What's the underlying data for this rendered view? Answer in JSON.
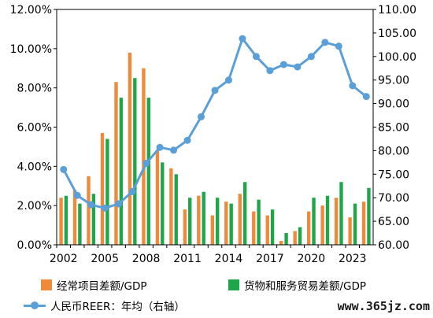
{
  "chart_data": {
    "type": "bar+line",
    "categories": [
      "2002",
      "2003",
      "2004",
      "2005",
      "2006",
      "2007",
      "2008",
      "2009",
      "2010",
      "2011",
      "2012",
      "2013",
      "2014",
      "2015",
      "2016",
      "2017",
      "2018",
      "2019",
      "2020",
      "2021",
      "2022",
      "2023",
      "2024"
    ],
    "x_tick_labels": [
      "2002",
      "2005",
      "2008",
      "2011",
      "2014",
      "2017",
      "2020",
      "2023"
    ],
    "left_axis": {
      "ylim": [
        0,
        0.12
      ],
      "ticks": [
        "0.00%",
        "2.00%",
        "4.00%",
        "6.00%",
        "8.00%",
        "10.00%",
        "12.00%"
      ]
    },
    "right_axis": {
      "ylim": [
        60,
        110
      ],
      "ticks": [
        "60.00",
        "65.00",
        "70.00",
        "75.00",
        "80.00",
        "85.00",
        "90.00",
        "95.00",
        "100.00",
        "105.00",
        "110.00"
      ]
    },
    "series": [
      {
        "name": "经常项目差额/GDP",
        "type": "bar",
        "axis": "left",
        "color": "#ee8a3a",
        "values": [
          0.024,
          0.028,
          0.035,
          0.057,
          0.083,
          0.098,
          0.09,
          0.048,
          0.039,
          0.018,
          0.025,
          0.015,
          0.022,
          0.026,
          0.017,
          0.015,
          0.002,
          0.007,
          0.017,
          0.02,
          0.024,
          0.014,
          0.022
        ]
      },
      {
        "name": "货物和服务贸易差额/GDP",
        "type": "bar",
        "axis": "left",
        "color": "#1fa64a",
        "values": [
          0.025,
          0.021,
          0.026,
          0.054,
          0.075,
          0.085,
          0.075,
          0.042,
          0.036,
          0.024,
          0.027,
          0.024,
          0.021,
          0.032,
          0.023,
          0.018,
          0.006,
          0.009,
          0.024,
          0.025,
          0.032,
          0.021,
          0.029
        ]
      },
      {
        "name": "人民币REER：年均（右轴）",
        "type": "line",
        "axis": "right",
        "color": "#5a9fd8",
        "values": [
          76.0,
          70.5,
          68.5,
          67.8,
          68.7,
          71.3,
          77.3,
          80.7,
          80.1,
          82.2,
          87.2,
          92.8,
          95.0,
          103.8,
          100.0,
          97.0,
          98.3,
          97.8,
          100.0,
          103.0,
          102.2,
          93.8,
          91.5
        ]
      }
    ]
  },
  "legend": {
    "item1": "经常项目差额/GDP",
    "item2": "货物和服务贸易差额/GDP",
    "item3": "人民币REER：年均（右轴）"
  },
  "watermark": "www.365jz.com"
}
